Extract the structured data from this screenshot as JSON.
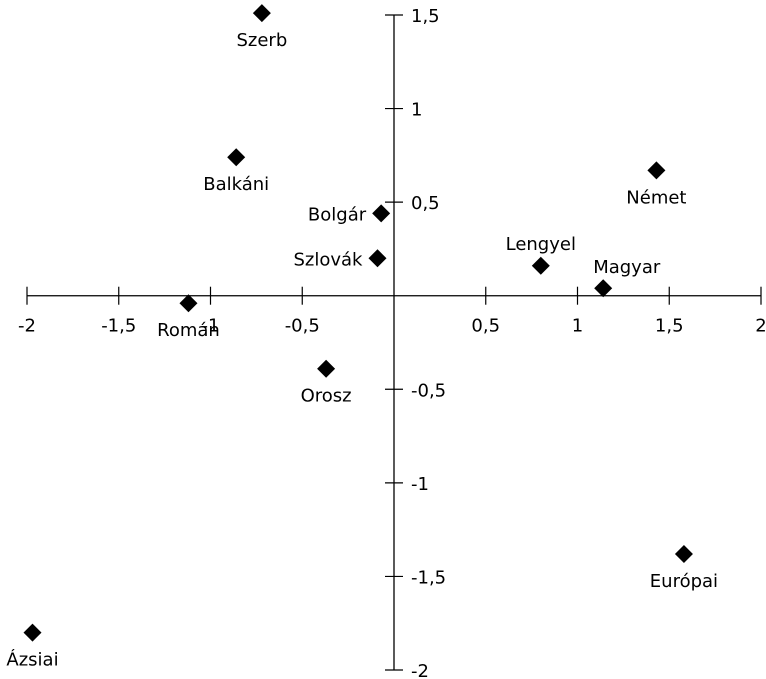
{
  "chart_data": {
    "type": "scatter",
    "title": "",
    "xlabel": "",
    "ylabel": "",
    "xlim": [
      -2,
      2
    ],
    "ylim": [
      -2,
      1.5
    ],
    "x_ticks": [
      {
        "value": -2,
        "label": "-2"
      },
      {
        "value": -1.5,
        "label": "-1,5"
      },
      {
        "value": -1,
        "label": "-1"
      },
      {
        "value": -0.5,
        "label": "-0,5"
      },
      {
        "value": 0.5,
        "label": "0,5"
      },
      {
        "value": 1,
        "label": "1"
      },
      {
        "value": 1.5,
        "label": "1,5"
      },
      {
        "value": 2,
        "label": "2"
      }
    ],
    "y_ticks": [
      {
        "value": 1.5,
        "label": "1,5"
      },
      {
        "value": 1,
        "label": "1"
      },
      {
        "value": 0.5,
        "label": "0,5"
      },
      {
        "value": -0.5,
        "label": "-0,5"
      },
      {
        "value": -1,
        "label": "-1"
      },
      {
        "value": -1.5,
        "label": "-1,5"
      },
      {
        "value": -2,
        "label": "-2"
      }
    ],
    "grid": false,
    "marker": "diamond",
    "points": [
      {
        "label": "Szerb",
        "x": -0.72,
        "y": 1.51,
        "label_pos": "below"
      },
      {
        "label": "Balkáni",
        "x": -0.86,
        "y": 0.74,
        "label_pos": "below"
      },
      {
        "label": "Bolgár",
        "x": -0.07,
        "y": 0.44,
        "label_pos": "left"
      },
      {
        "label": "Szlovák",
        "x": -0.09,
        "y": 0.2,
        "label_pos": "left"
      },
      {
        "label": "Román",
        "x": -1.12,
        "y": -0.04,
        "label_pos": "below"
      },
      {
        "label": "Orosz",
        "x": -0.37,
        "y": -0.39,
        "label_pos": "below"
      },
      {
        "label": "Német",
        "x": 1.43,
        "y": 0.67,
        "label_pos": "below"
      },
      {
        "label": "Lengyel",
        "x": 0.8,
        "y": 0.16,
        "label_pos": "above"
      },
      {
        "label": "Magyar",
        "x": 1.14,
        "y": 0.04,
        "label_pos": "above-right"
      },
      {
        "label": "Európai",
        "x": 1.58,
        "y": -1.38,
        "label_pos": "below"
      },
      {
        "label": "Ázsiai",
        "x": -1.97,
        "y": -1.8,
        "label_pos": "below"
      }
    ]
  }
}
